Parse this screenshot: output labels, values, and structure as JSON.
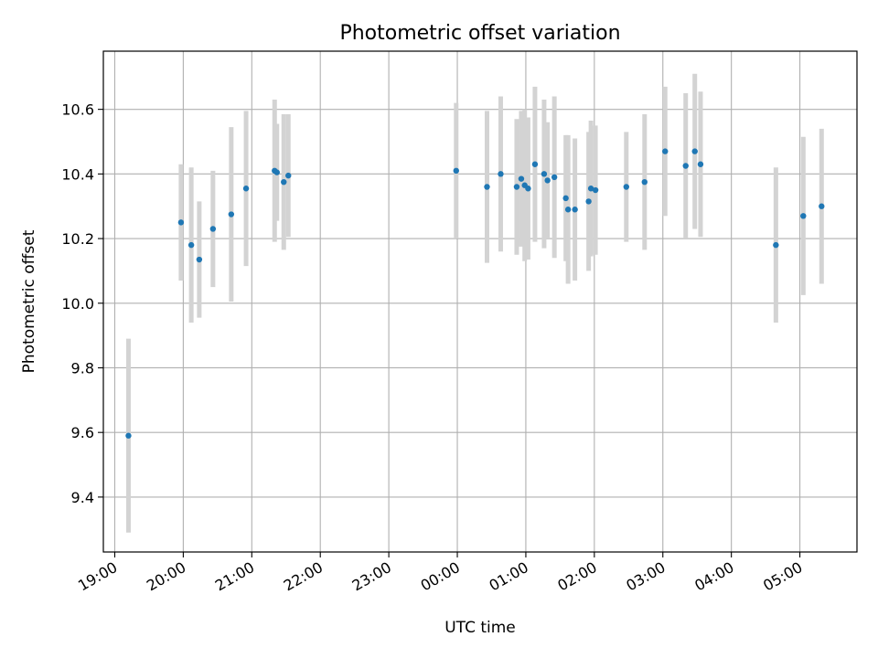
{
  "chart_data": {
    "type": "scatter",
    "title": "Photometric offset variation",
    "xlabel": "UTC time",
    "ylabel": "Photometric offset",
    "x_tick_labels": [
      "19:00",
      "20:00",
      "21:00",
      "22:00",
      "23:00",
      "00:00",
      "01:00",
      "02:00",
      "03:00",
      "04:00",
      "05:00"
    ],
    "y_tick_labels": [
      "9.4",
      "9.6",
      "9.8",
      "10.0",
      "10.2",
      "10.4",
      "10.6"
    ],
    "xlim": [
      "18:50",
      "05:50"
    ],
    "ylim": [
      9.23,
      10.78
    ],
    "grid": true,
    "legend": "none",
    "colors": {
      "point": "#1f77b4",
      "errorbar": "#d3d3d3",
      "grid": "#b0b0b0"
    },
    "points": [
      {
        "time": "19:12",
        "y": 9.59,
        "err": 0.3
      },
      {
        "time": "19:58",
        "y": 10.25,
        "err": 0.18
      },
      {
        "time": "20:07",
        "y": 10.18,
        "err": 0.24
      },
      {
        "time": "20:14",
        "y": 10.135,
        "err": 0.18
      },
      {
        "time": "20:26",
        "y": 10.23,
        "err": 0.18
      },
      {
        "time": "20:42",
        "y": 10.275,
        "err": 0.27
      },
      {
        "time": "20:55",
        "y": 10.355,
        "err": 0.24
      },
      {
        "time": "21:20",
        "y": 10.41,
        "err": 0.22
      },
      {
        "time": "21:22",
        "y": 10.405,
        "err": 0.15
      },
      {
        "time": "21:28",
        "y": 10.375,
        "err": 0.21
      },
      {
        "time": "21:32",
        "y": 10.395,
        "err": 0.19
      },
      {
        "time": "23:59",
        "y": 10.41,
        "err": 0.21
      },
      {
        "time": "00:26",
        "y": 10.36,
        "err": 0.235
      },
      {
        "time": "00:38",
        "y": 10.4,
        "err": 0.24
      },
      {
        "time": "00:52",
        "y": 10.36,
        "err": 0.21
      },
      {
        "time": "00:56",
        "y": 10.385,
        "err": 0.21
      },
      {
        "time": "00:59",
        "y": 10.365,
        "err": 0.235
      },
      {
        "time": "01:02",
        "y": 10.355,
        "err": 0.22
      },
      {
        "time": "01:08",
        "y": 10.43,
        "err": 0.24
      },
      {
        "time": "01:16",
        "y": 10.4,
        "err": 0.23
      },
      {
        "time": "01:19",
        "y": 10.38,
        "err": 0.18
      },
      {
        "time": "01:25",
        "y": 10.39,
        "err": 0.25
      },
      {
        "time": "01:35",
        "y": 10.325,
        "err": 0.195
      },
      {
        "time": "01:37",
        "y": 10.29,
        "err": 0.23
      },
      {
        "time": "01:43",
        "y": 10.29,
        "err": 0.22
      },
      {
        "time": "01:55",
        "y": 10.315,
        "err": 0.215
      },
      {
        "time": "01:57",
        "y": 10.355,
        "err": 0.21
      },
      {
        "time": "02:01",
        "y": 10.35,
        "err": 0.2
      },
      {
        "time": "02:28",
        "y": 10.36,
        "err": 0.17
      },
      {
        "time": "02:44",
        "y": 10.375,
        "err": 0.21
      },
      {
        "time": "03:02",
        "y": 10.47,
        "err": 0.2
      },
      {
        "time": "03:20",
        "y": 10.425,
        "err": 0.225
      },
      {
        "time": "03:28",
        "y": 10.47,
        "err": 0.24
      },
      {
        "time": "03:33",
        "y": 10.43,
        "err": 0.225
      },
      {
        "time": "04:39",
        "y": 10.18,
        "err": 0.24
      },
      {
        "time": "05:03",
        "y": 10.27,
        "err": 0.245
      },
      {
        "time": "05:19",
        "y": 10.3,
        "err": 0.24
      }
    ]
  }
}
